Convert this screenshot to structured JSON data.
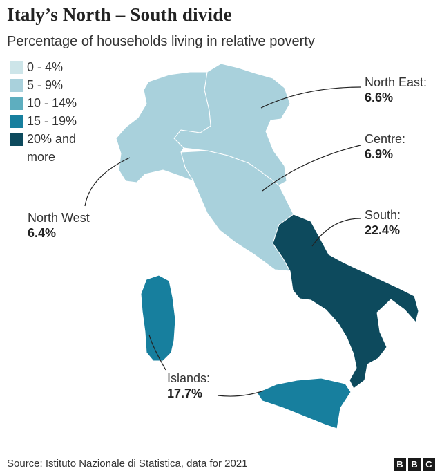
{
  "title": "Italy’s North – South divide",
  "subtitle": "Percentage of households living in relative poverty",
  "legend": [
    {
      "label": "0 - 4%",
      "color": "#cde5e9"
    },
    {
      "label": "5 - 9%",
      "color": "#a9d1dc"
    },
    {
      "label": "10 - 14%",
      "color": "#5eaebf"
    },
    {
      "label": "15 - 19%",
      "color": "#177f9e"
    },
    {
      "label": "20% and more",
      "color": "#0d4a5d"
    }
  ],
  "regions": {
    "north_east": {
      "name": "North East:",
      "value": "6.6%",
      "color": "#a9d1dc"
    },
    "centre": {
      "name": "Centre:",
      "value": "6.9%",
      "color": "#a9d1dc"
    },
    "north_west": {
      "name": "North West",
      "value": "6.4%",
      "color": "#a9d1dc"
    },
    "south": {
      "name": "South:",
      "value": "22.4%",
      "color": "#0d4a5d"
    },
    "islands": {
      "name": "Islands:",
      "value": "17.7%",
      "color": "#177f9e"
    }
  },
  "source": "Source: Istituto Nazionale di Statistica, data for 2021",
  "logo": [
    "B",
    "B",
    "C"
  ]
}
